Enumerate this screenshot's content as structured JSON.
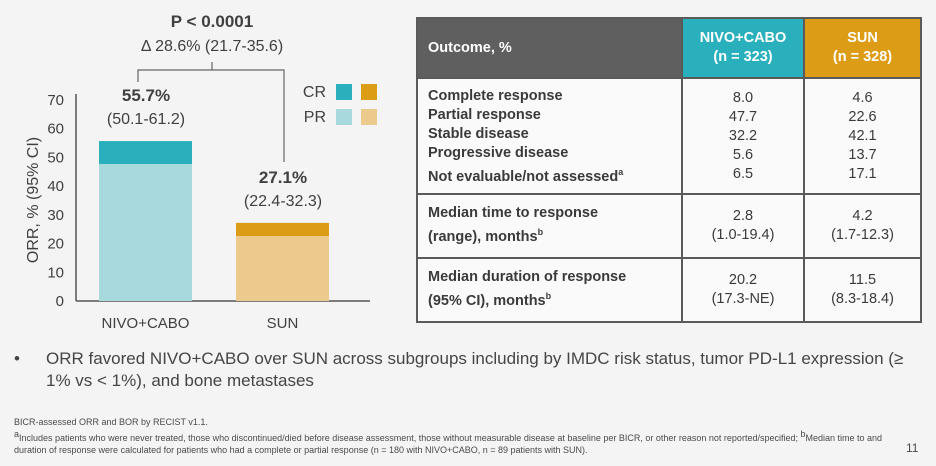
{
  "chart_data": {
    "type": "bar",
    "stacked": true,
    "categories": [
      "NIVO+CABO",
      "SUN"
    ],
    "series": [
      {
        "name": "PR",
        "values": [
          47.7,
          22.6
        ]
      },
      {
        "name": "CR",
        "values": [
          8.0,
          4.6
        ]
      }
    ],
    "totals": [
      {
        "value": "55.7%",
        "ci": "(50.1-61.2)"
      },
      {
        "value": "27.1%",
        "ci": "(22.4-32.3)"
      }
    ],
    "ylabel": "ORR, % (95% CI)",
    "ylim": [
      0,
      70
    ],
    "yticks": [
      0,
      10,
      20,
      30,
      40,
      50,
      60,
      70
    ],
    "legend": {
      "position": "top-right",
      "labels": [
        "CR",
        "PR"
      ]
    },
    "comparison": {
      "p_value": "P < 0.0001",
      "delta": "Δ 28.6% (21.7-35.6)"
    },
    "colors": {
      "nivo_cr": "#2ab0bd",
      "nivo_pr": "#a8d9dc",
      "sun_cr": "#dd9c16",
      "sun_pr": "#ecca8d"
    },
    "grid": false
  },
  "table": {
    "header": {
      "outcome": "Outcome, %",
      "nivo": [
        "NIVO+CABO",
        "(n = 323)"
      ],
      "sun": [
        "SUN",
        "(n = 328)"
      ]
    },
    "response_rows": [
      {
        "label": "Complete response",
        "nivo": "8.0",
        "sun": "4.6",
        "sup": ""
      },
      {
        "label": "Partial response",
        "nivo": "47.7",
        "sun": "22.6",
        "sup": ""
      },
      {
        "label": "Stable disease",
        "nivo": "32.2",
        "sun": "42.1",
        "sup": ""
      },
      {
        "label": "Progressive disease",
        "nivo": "5.6",
        "sun": "13.7",
        "sup": ""
      },
      {
        "label": "Not evaluable/not assessed",
        "nivo": "6.5",
        "sun": "17.1",
        "sup": "a"
      }
    ],
    "ttr": {
      "label_line1": "Median time to response",
      "label_line2": "(range), months",
      "sup": "b",
      "nivo": [
        "2.8",
        "(1.0-19.4)"
      ],
      "sun": [
        "4.2",
        "(1.7-12.3)"
      ]
    },
    "dor": {
      "label_line1": "Median duration of response",
      "label_line2": "(95% CI), months",
      "sup": "b",
      "nivo": [
        "20.2",
        "(17.3-NE)"
      ],
      "sun": [
        "11.5",
        "(8.3-18.4)"
      ]
    }
  },
  "bullet": {
    "marker": "•",
    "text": "ORR favored NIVO+CABO over SUN across subgroups including by IMDC risk status, tumor PD-L1 expression (≥ 1% vs < 1%), and bone metastases"
  },
  "footnotes": {
    "line1": "BICR-assessed ORR and BOR by RECIST v1.1.",
    "line2_sup": "a",
    "line2": "Includes patients who were never treated, those who discontinued/died before disease assessment, those without measurable disease at baseline per BICR, or other reason not reported/specified; ",
    "line2b_sup": "b",
    "line2b": "Median time to and duration of response were calculated for patients who had a complete or partial response (n = 180 with NIVO+CABO, n = 89 patients with SUN)."
  },
  "page_number": "11"
}
